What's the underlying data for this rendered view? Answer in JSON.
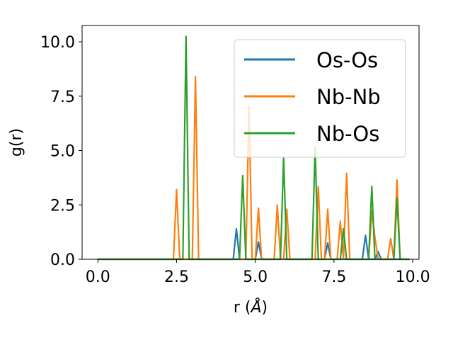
{
  "chart_data": {
    "type": "line",
    "title": "",
    "xlabel_main": "r (",
    "xlabel_unit": "Å",
    "xlabel_close": ")",
    "ylabel": "g(r)",
    "xlim": [
      -0.5,
      10.2
    ],
    "ylim": [
      0,
      10.75
    ],
    "xticks": [
      0.0,
      2.5,
      5.0,
      7.5,
      10.0
    ],
    "xtick_labels": [
      "0.0",
      "2.5",
      "5.0",
      "7.5",
      "10.0"
    ],
    "yticks": [
      0.0,
      2.5,
      5.0,
      7.5,
      10.0
    ],
    "ytick_labels": [
      "0.0",
      "2.5",
      "5.0",
      "7.5",
      "10.0"
    ],
    "grid": false,
    "legend_position": "top-right",
    "x": [
      0.0,
      0.1,
      0.2,
      0.3,
      0.4,
      0.5,
      0.6,
      0.7,
      0.8,
      0.9,
      1.0,
      1.1,
      1.2,
      1.3,
      1.4,
      1.5,
      1.6,
      1.7,
      1.8,
      1.9,
      2.0,
      2.1,
      2.2,
      2.3,
      2.4,
      2.5,
      2.6,
      2.7,
      2.8,
      2.9,
      3.0,
      3.1,
      3.2,
      3.3,
      3.4,
      3.5,
      3.6,
      3.7,
      3.8,
      3.9,
      4.0,
      4.1,
      4.2,
      4.3,
      4.4,
      4.5,
      4.6,
      4.7,
      4.8,
      4.9,
      5.0,
      5.1,
      5.2,
      5.3,
      5.4,
      5.5,
      5.6,
      5.7,
      5.8,
      5.9,
      6.0,
      6.1,
      6.2,
      6.3,
      6.4,
      6.5,
      6.6,
      6.7,
      6.8,
      6.9,
      7.0,
      7.1,
      7.2,
      7.3,
      7.4,
      7.5,
      7.6,
      7.7,
      7.8,
      7.9,
      8.0,
      8.1,
      8.2,
      8.3,
      8.4,
      8.5,
      8.6,
      8.7,
      8.8,
      8.9,
      9.0,
      9.1,
      9.2,
      9.3,
      9.4,
      9.5,
      9.6,
      9.7,
      9.8,
      9.9
    ],
    "series": [
      {
        "name": "Os-Os",
        "color": "#1f77b4",
        "values": [
          0,
          0,
          0,
          0,
          0,
          0,
          0,
          0,
          0,
          0,
          0,
          0,
          0,
          0,
          0,
          0,
          0,
          0,
          0,
          0,
          0,
          0,
          0,
          0,
          0,
          0,
          0,
          0,
          0,
          0,
          0,
          0,
          0,
          0,
          0,
          0,
          0,
          0,
          0,
          0,
          0,
          0,
          0,
          0,
          1.4,
          0,
          0,
          0,
          0,
          0,
          0,
          0.8,
          0,
          0,
          0,
          0,
          0,
          0,
          0,
          0,
          0,
          0,
          0,
          0,
          0,
          0,
          0,
          0,
          0,
          0,
          0,
          0,
          0,
          0.75,
          0,
          0,
          0,
          0,
          0,
          0,
          0,
          0,
          0,
          0,
          0,
          1.1,
          0,
          0,
          0,
          0.35,
          0,
          0,
          0,
          0,
          0,
          0,
          0,
          0,
          0,
          0
        ]
      },
      {
        "name": "Nb-Nb",
        "color": "#ff7f0e",
        "values": [
          0,
          0,
          0,
          0,
          0,
          0,
          0,
          0,
          0,
          0,
          0,
          0,
          0,
          0,
          0,
          0,
          0,
          0,
          0,
          0,
          0,
          0,
          0,
          0,
          0,
          3.2,
          0,
          0,
          0,
          0,
          0,
          8.4,
          0,
          0,
          0,
          0,
          0,
          0,
          0,
          0,
          0,
          0,
          0,
          0,
          0,
          0,
          0,
          0,
          7.05,
          0,
          0,
          2.35,
          0,
          0,
          0,
          0,
          0,
          2.5,
          0,
          0,
          2.3,
          0,
          0,
          0,
          0,
          0,
          0,
          0,
          0,
          0,
          3.35,
          0,
          0,
          2.3,
          0,
          0,
          0,
          1.75,
          0,
          3.95,
          0,
          0,
          0,
          0,
          0,
          0,
          0,
          2.2,
          1.0,
          0,
          0,
          0,
          0,
          0.95,
          0,
          3.65,
          0,
          0,
          0,
          0
        ]
      },
      {
        "name": "Nb-Os",
        "color": "#2ca02c",
        "values": [
          0,
          0,
          0,
          0,
          0,
          0,
          0,
          0,
          0,
          0,
          0,
          0,
          0,
          0,
          0,
          0,
          0,
          0,
          0,
          0,
          0,
          0,
          0,
          0,
          0,
          0,
          0,
          0,
          10.25,
          0,
          0,
          0,
          0,
          0,
          0,
          0,
          0,
          0,
          0,
          0,
          0,
          0,
          0,
          0,
          0,
          0,
          3.85,
          0,
          0,
          0,
          0,
          0,
          0,
          0,
          0,
          0,
          0,
          0,
          0,
          4.65,
          0,
          0,
          0,
          0,
          0,
          0,
          0,
          0,
          0,
          5.15,
          0,
          0,
          0,
          0,
          0,
          0,
          0,
          0,
          1.4,
          0,
          0,
          0,
          0,
          0,
          0,
          0,
          0,
          3.35,
          0,
          0,
          0,
          0,
          0,
          0,
          0,
          2.8,
          0,
          0,
          0,
          0
        ]
      }
    ]
  }
}
